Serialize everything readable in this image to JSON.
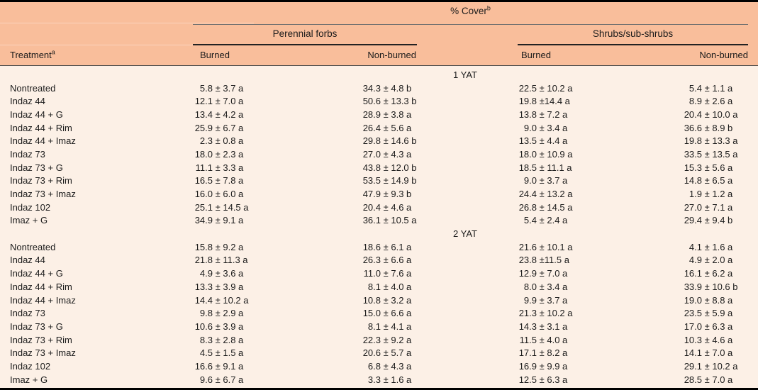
{
  "header": {
    "cover_label": "% Cover",
    "cover_sup": "b",
    "treatment_label": "Treatment",
    "treatment_sup": "a",
    "groups": [
      {
        "label": "Perennial forbs"
      },
      {
        "label": "Shrubs/sub-shrubs"
      }
    ],
    "col_burned": "Burned",
    "col_nonburned": "Non-burned"
  },
  "colors": {
    "header_bg": "#f9be9b",
    "body_bg": "#fcf0e6",
    "border": "#000000",
    "text": "#1b1b1b"
  },
  "sections": [
    {
      "label": "1 YAT",
      "rows": [
        {
          "treatment": "Nontreated",
          "values": [
            "5.8 ± 3.7 a",
            "34.3 ± 4.8 b",
            "22.5 ± 10.2 a",
            "5.4 ± 1.1 a"
          ]
        },
        {
          "treatment": "Indaz 44",
          "values": [
            "12.1 ± 7.0 a",
            "50.6 ± 13.3 b",
            "19.8 ±14.4 a",
            "8.9 ± 2.6 a"
          ]
        },
        {
          "treatment": "Indaz 44 + G",
          "values": [
            "13.4 ± 4.2 a",
            "28.9 ± 3.8 a",
            "13.8 ± 7.2 a",
            "20.4 ± 10.0 a"
          ]
        },
        {
          "treatment": "Indaz 44 + Rim",
          "values": [
            "25.9 ± 6.7 a",
            "26.4 ± 5.6 a",
            "9.0 ± 3.4 a",
            "36.6 ± 8.9 b"
          ]
        },
        {
          "treatment": "Indaz 44 + Imaz",
          "values": [
            "2.3 ± 0.8 a",
            "29.8 ± 14.6 b",
            "13.5 ± 4.4 a",
            "19.8 ± 13.3 a"
          ]
        },
        {
          "treatment": "Indaz 73",
          "values": [
            "18.0 ± 2.3 a",
            "27.0 ± 4.3 a",
            "18.0 ± 10.9 a",
            "33.5 ± 13.5 a"
          ]
        },
        {
          "treatment": "Indaz 73 + G",
          "values": [
            "11.1 ± 3.3 a",
            "43.8 ± 12.0 b",
            "18.5 ± 11.1 a",
            "15.3 ± 5.6 a"
          ]
        },
        {
          "treatment": "Indaz 73 + Rim",
          "values": [
            "16.5 ± 7.8 a",
            "53.5 ± 14.9 b",
            "9.0 ± 3.7 a",
            "14.8 ± 6.5 a"
          ]
        },
        {
          "treatment": "Indaz 73 + Imaz",
          "values": [
            "16.0 ± 6.0 a",
            "47.9 ± 9.3 b",
            "24.4 ± 13.2 a",
            "1.9 ± 1.2 a"
          ]
        },
        {
          "treatment": "Indaz 102",
          "values": [
            "25.1 ± 14.5 a",
            "20.4 ± 4.6 a",
            "26.8 ± 14.5 a",
            "27.0 ± 7.1 a"
          ]
        },
        {
          "treatment": "Imaz + G",
          "values": [
            "34.9 ± 9.1 a",
            "36.1 ± 10.5 a",
            "5.4 ± 2.4 a",
            "29.4 ± 9.4 b"
          ]
        }
      ]
    },
    {
      "label": "2 YAT",
      "rows": [
        {
          "treatment": "Nontreated",
          "values": [
            "15.8 ± 9.2 a",
            "18.6 ± 6.1 a",
            "21.6 ± 10.1 a",
            "4.1 ± 1.6 a"
          ]
        },
        {
          "treatment": "Indaz 44",
          "values": [
            "21.8 ± 11.3 a",
            "26.3 ± 6.6 a",
            "23.8 ±11.5 a",
            "4.9 ± 2.0 a"
          ]
        },
        {
          "treatment": "Indaz 44 + G",
          "values": [
            "4.9 ± 3.6 a",
            "11.0 ± 7.6 a",
            "12.9 ± 7.0 a",
            "16.1 ± 6.2 a"
          ]
        },
        {
          "treatment": "Indaz 44 + Rim",
          "values": [
            "13.3 ± 3.9 a",
            "8.1 ± 4.0 a",
            "8.0 ± 3.4 a",
            "33.9 ± 10.6 b"
          ]
        },
        {
          "treatment": "Indaz 44 + Imaz",
          "values": [
            "14.4 ± 10.2 a",
            "10.8 ± 3.2 a",
            "9.9 ± 3.7 a",
            "19.0 ± 8.8 a"
          ]
        },
        {
          "treatment": "Indaz 73",
          "values": [
            "9.8 ± 2.9 a",
            "15.0 ± 6.6 a",
            "21.3 ± 10.2 a",
            "23.5 ± 5.9 a"
          ]
        },
        {
          "treatment": "Indaz 73 + G",
          "values": [
            "10.6 ± 3.9 a",
            "8.1 ± 4.1 a",
            "14.3 ± 3.1 a",
            "17.0 ± 6.3 a"
          ]
        },
        {
          "treatment": "Indaz 73 + Rim",
          "values": [
            "8.3 ± 2.8 a",
            "22.3 ± 9.2 a",
            "11.5 ± 4.0 a",
            "10.3 ± 4.6 a"
          ]
        },
        {
          "treatment": "Indaz 73 + Imaz",
          "values": [
            "4.5 ± 1.5 a",
            "20.6 ± 5.7 a",
            "17.1 ± 8.2 a",
            "14.1 ± 7.0 a"
          ]
        },
        {
          "treatment": "Indaz 102",
          "values": [
            "16.6 ± 9.1 a",
            "6.8 ± 4.3 a",
            "16.9 ± 9.9 a",
            "29.1 ± 10.2 a"
          ]
        },
        {
          "treatment": "Imaz + G",
          "values": [
            "9.6 ± 6.7 a",
            "3.3 ± 1.6 a",
            "12.5 ± 6.3 a",
            "28.5 ± 7.0 a"
          ]
        }
      ]
    }
  ]
}
